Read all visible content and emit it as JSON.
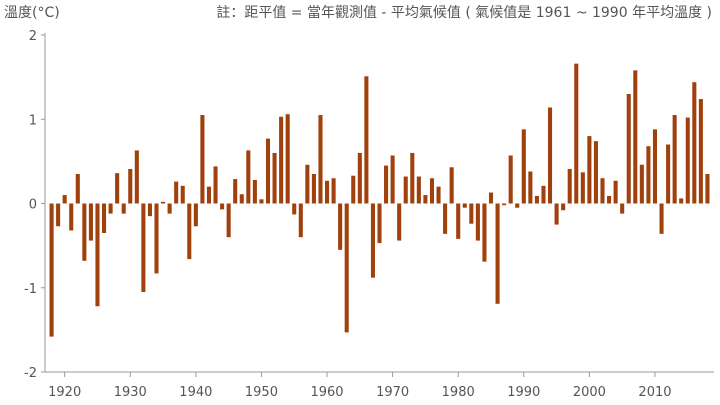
{
  "chart_data": {
    "type": "bar",
    "title": "",
    "xlabel": "",
    "ylabel": "溫度(°C)",
    "note": "註：距平值 = 當年觀測值 - 平均氣候值 ( 氣候值是 1961 ~ 1990 年平均溫度 )",
    "bar_color": "#a0400c",
    "axis_color": "#999999",
    "grid": false,
    "ylim": [
      -2,
      2
    ],
    "yticks": [
      -2,
      -1,
      0,
      1,
      2
    ],
    "xlim": [
      1917,
      2019
    ],
    "xticks": [
      1920,
      1930,
      1940,
      1950,
      1960,
      1970,
      1980,
      1990,
      2000,
      2010
    ],
    "x": [
      1918,
      1919,
      1920,
      1921,
      1922,
      1923,
      1924,
      1925,
      1926,
      1927,
      1928,
      1929,
      1930,
      1931,
      1932,
      1933,
      1934,
      1935,
      1936,
      1937,
      1938,
      1939,
      1940,
      1941,
      1942,
      1943,
      1944,
      1945,
      1946,
      1947,
      1948,
      1949,
      1950,
      1951,
      1952,
      1953,
      1954,
      1955,
      1956,
      1957,
      1958,
      1959,
      1960,
      1961,
      1962,
      1963,
      1964,
      1965,
      1966,
      1967,
      1968,
      1969,
      1970,
      1971,
      1972,
      1973,
      1974,
      1975,
      1976,
      1977,
      1978,
      1979,
      1980,
      1981,
      1982,
      1983,
      1984,
      1985,
      1986,
      1987,
      1988,
      1989,
      1990,
      1991,
      1992,
      1993,
      1994,
      1995,
      1996,
      1997,
      1998,
      1999,
      2000,
      2001,
      2002,
      2003,
      2004,
      2005,
      2006,
      2007,
      2008,
      2009,
      2010,
      2011,
      2012,
      2013,
      2014,
      2015,
      2016,
      2017,
      2018
    ],
    "values": [
      -1.58,
      -0.27,
      0.1,
      -0.32,
      0.35,
      -0.68,
      -0.44,
      -1.22,
      -0.35,
      -0.12,
      0.36,
      -0.12,
      0.41,
      0.63,
      -1.05,
      -0.15,
      -0.83,
      0.02,
      -0.12,
      0.26,
      0.21,
      -0.66,
      -0.27,
      1.05,
      0.2,
      0.44,
      -0.07,
      -0.4,
      0.29,
      0.11,
      0.63,
      0.28,
      0.05,
      0.77,
      0.6,
      1.03,
      1.06,
      -0.13,
      -0.4,
      0.46,
      0.35,
      1.05,
      0.27,
      0.3,
      -0.55,
      -1.53,
      0.33,
      0.6,
      1.51,
      -0.88,
      -0.47,
      0.45,
      0.57,
      -0.44,
      0.32,
      0.6,
      0.32,
      0.1,
      0.3,
      0.2,
      -0.36,
      0.43,
      -0.42,
      -0.05,
      -0.24,
      -0.44,
      -0.69,
      0.13,
      -1.19,
      -0.02,
      0.57,
      -0.05,
      0.88,
      0.38,
      0.09,
      0.21,
      1.14,
      -0.25,
      -0.08,
      0.41,
      1.66,
      0.37,
      0.8,
      0.74,
      0.3,
      0.09,
      0.27,
      -0.12,
      1.3,
      1.58,
      0.46,
      0.68,
      0.88,
      -0.36,
      0.7,
      1.05,
      0.06,
      1.02,
      1.44,
      1.24,
      0.35
    ]
  }
}
